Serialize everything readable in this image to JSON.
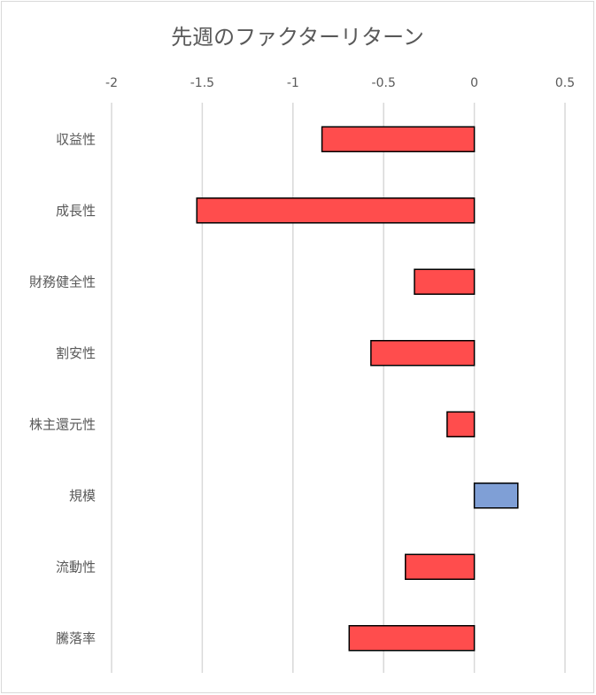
{
  "chart_data": {
    "type": "bar",
    "orientation": "horizontal",
    "title": "先週のファクターリターン",
    "xlabel": "",
    "ylabel": "",
    "xlim": [
      -2,
      0.5
    ],
    "xticks": [
      "-2",
      "-1.5",
      "-1",
      "-0.5",
      "0",
      "0.5"
    ],
    "grid": true,
    "categories": [
      "収益性",
      "成長性",
      "財務健全性",
      "割安性",
      "株主還元性",
      "規模",
      "流動性",
      "騰落率"
    ],
    "values": [
      -0.84,
      -1.53,
      -0.33,
      -0.57,
      -0.15,
      0.24,
      -0.38,
      -0.69
    ],
    "colors": {
      "negative": "#ff4d4d",
      "positive": "#7f9fd6"
    }
  }
}
